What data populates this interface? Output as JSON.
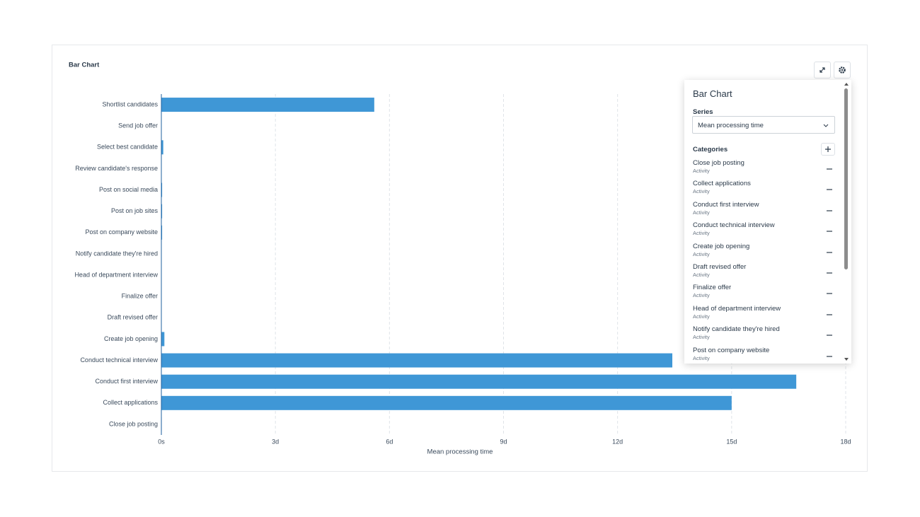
{
  "chart_data": {
    "type": "bar",
    "orientation": "horizontal",
    "title": "Bar Chart",
    "x_label": "Mean processing time",
    "categories": [
      "Shortlist candidates",
      "Send job offer",
      "Select best candidate",
      "Review candidate's response",
      "Post on social media",
      "Post on job sites",
      "Post on company website",
      "Notify candidate they're hired",
      "Head of department interview",
      "Finalize offer",
      "Draft revised offer",
      "Create job opening",
      "Conduct technical interview",
      "Conduct first interview",
      "Collect applications",
      "Close job posting"
    ],
    "values": [
      5.6,
      0,
      0.05,
      0,
      0.02,
      0.02,
      0.02,
      0,
      0,
      0,
      0,
      0.08,
      13.44,
      16.7,
      15.0,
      0.01
    ],
    "color": "#3f97d6",
    "xlim": [
      0,
      18
    ],
    "xticks": [
      {
        "value": 0,
        "label": "0s"
      },
      {
        "value": 3,
        "label": "3d"
      },
      {
        "value": 6,
        "label": "6d"
      },
      {
        "value": 9,
        "label": "9d"
      },
      {
        "value": 12,
        "label": "12d"
      },
      {
        "value": 15,
        "label": "15d"
      },
      {
        "value": 18,
        "label": "18d"
      }
    ],
    "grid": true
  },
  "settings_panel": {
    "title": "Bar Chart",
    "series_label": "Series",
    "series_value": "Mean processing time",
    "categories_label": "Categories",
    "items": [
      {
        "name": "Close job posting",
        "kind": "Activity"
      },
      {
        "name": "Collect applications",
        "kind": "Activity"
      },
      {
        "name": "Conduct first interview",
        "kind": "Activity"
      },
      {
        "name": "Conduct technical interview",
        "kind": "Activity"
      },
      {
        "name": "Create job opening",
        "kind": "Activity"
      },
      {
        "name": "Draft revised offer",
        "kind": "Activity"
      },
      {
        "name": "Finalize offer",
        "kind": "Activity"
      },
      {
        "name": "Head of department interview",
        "kind": "Activity"
      },
      {
        "name": "Notify candidate they're hired",
        "kind": "Activity"
      },
      {
        "name": "Post on company website",
        "kind": "Activity"
      }
    ]
  }
}
